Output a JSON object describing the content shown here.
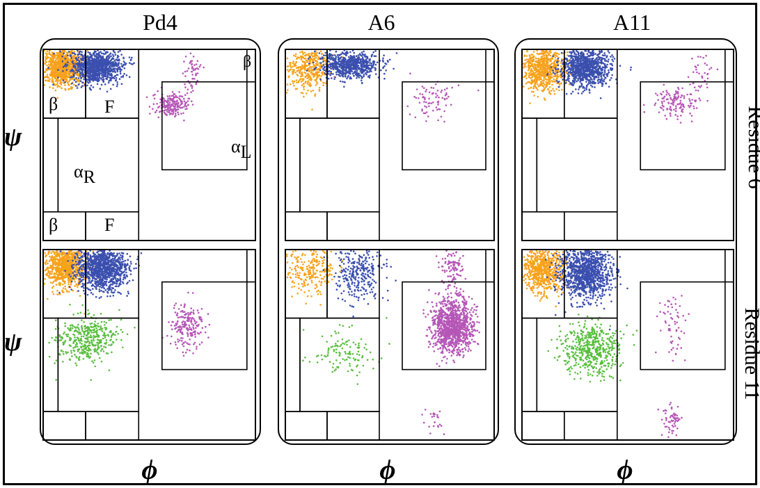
{
  "columns": [
    "Pd4",
    "A6",
    "A11"
  ],
  "rows": [
    "Residue 6",
    "Residue 11"
  ],
  "axis": {
    "x": "ϕ",
    "y": "ψ"
  },
  "region_labels": {
    "beta": "β",
    "F": "F",
    "alpha": "α",
    "R": "R",
    "L": "L"
  },
  "colors": {
    "beta": "#f7a21b",
    "F": "#3a4fae",
    "alphaR": "#59be3f",
    "alphaL": "#b556b6"
  },
  "chart_data": {
    "type": "scatter",
    "description_fields": [
      "panel",
      "series"
    ],
    "panels": [
      {
        "column": "Pd4",
        "row": "Residue 6",
        "clusters": [
          {
            "series": "beta",
            "cx": 0.09,
            "cy": 0.09,
            "sx": 0.05,
            "sy": 0.05,
            "n": 900
          },
          {
            "series": "F",
            "cx": 0.25,
            "cy": 0.09,
            "sx": 0.06,
            "sy": 0.045,
            "n": 1000
          },
          {
            "series": "alphaL",
            "cx": 0.6,
            "cy": 0.29,
            "sx": 0.04,
            "sy": 0.03,
            "n": 200
          },
          {
            "series": "alphaL",
            "cx": 0.7,
            "cy": 0.12,
            "sx": 0.02,
            "sy": 0.06,
            "n": 60
          }
        ]
      },
      {
        "column": "A6",
        "row": "Residue 6",
        "clusters": [
          {
            "series": "beta",
            "cx": 0.11,
            "cy": 0.1,
            "sx": 0.05,
            "sy": 0.06,
            "n": 400
          },
          {
            "series": "F",
            "cx": 0.31,
            "cy": 0.08,
            "sx": 0.07,
            "sy": 0.035,
            "n": 700
          },
          {
            "series": "alphaL",
            "cx": 0.71,
            "cy": 0.26,
            "sx": 0.05,
            "sy": 0.05,
            "n": 80
          }
        ]
      },
      {
        "column": "A11",
        "row": "Residue 6",
        "clusters": [
          {
            "series": "beta",
            "cx": 0.1,
            "cy": 0.1,
            "sx": 0.05,
            "sy": 0.06,
            "n": 700
          },
          {
            "series": "F",
            "cx": 0.3,
            "cy": 0.09,
            "sx": 0.06,
            "sy": 0.05,
            "n": 1000
          },
          {
            "series": "alphaL",
            "cx": 0.73,
            "cy": 0.28,
            "sx": 0.05,
            "sy": 0.04,
            "n": 130
          },
          {
            "series": "alphaL",
            "cx": 0.85,
            "cy": 0.12,
            "sx": 0.03,
            "sy": 0.06,
            "n": 40
          }
        ]
      },
      {
        "column": "Pd4",
        "row": "Residue 11",
        "clusters": [
          {
            "series": "beta",
            "cx": 0.1,
            "cy": 0.08,
            "sx": 0.05,
            "sy": 0.06,
            "n": 900
          },
          {
            "series": "F",
            "cx": 0.28,
            "cy": 0.1,
            "sx": 0.06,
            "sy": 0.06,
            "n": 1100
          },
          {
            "series": "alphaR",
            "cx": 0.2,
            "cy": 0.47,
            "sx": 0.07,
            "sy": 0.06,
            "n": 400
          },
          {
            "series": "alphaL",
            "cx": 0.68,
            "cy": 0.41,
            "sx": 0.04,
            "sy": 0.06,
            "n": 200
          }
        ]
      },
      {
        "column": "A6",
        "row": "Residue 11",
        "clusters": [
          {
            "series": "beta",
            "cx": 0.12,
            "cy": 0.1,
            "sx": 0.06,
            "sy": 0.07,
            "n": 250
          },
          {
            "series": "F",
            "cx": 0.35,
            "cy": 0.12,
            "sx": 0.06,
            "sy": 0.07,
            "n": 300
          },
          {
            "series": "alphaR",
            "cx": 0.28,
            "cy": 0.54,
            "sx": 0.08,
            "sy": 0.06,
            "n": 120
          },
          {
            "series": "alphaL",
            "cx": 0.8,
            "cy": 0.4,
            "sx": 0.05,
            "sy": 0.07,
            "n": 1100
          },
          {
            "series": "alphaL",
            "cx": 0.8,
            "cy": 0.1,
            "sx": 0.03,
            "sy": 0.06,
            "n": 100
          },
          {
            "series": "alphaL",
            "cx": 0.72,
            "cy": 0.9,
            "sx": 0.03,
            "sy": 0.04,
            "n": 25
          }
        ]
      },
      {
        "column": "A11",
        "row": "Residue 11",
        "clusters": [
          {
            "series": "beta",
            "cx": 0.1,
            "cy": 0.1,
            "sx": 0.05,
            "sy": 0.06,
            "n": 700
          },
          {
            "series": "F",
            "cx": 0.3,
            "cy": 0.12,
            "sx": 0.06,
            "sy": 0.07,
            "n": 1100
          },
          {
            "series": "alphaR",
            "cx": 0.33,
            "cy": 0.52,
            "sx": 0.07,
            "sy": 0.07,
            "n": 500
          },
          {
            "series": "alphaL",
            "cx": 0.71,
            "cy": 0.38,
            "sx": 0.03,
            "sy": 0.1,
            "n": 60
          },
          {
            "series": "alphaL",
            "cx": 0.71,
            "cy": 0.9,
            "sx": 0.02,
            "sy": 0.04,
            "n": 60
          }
        ]
      }
    ]
  }
}
